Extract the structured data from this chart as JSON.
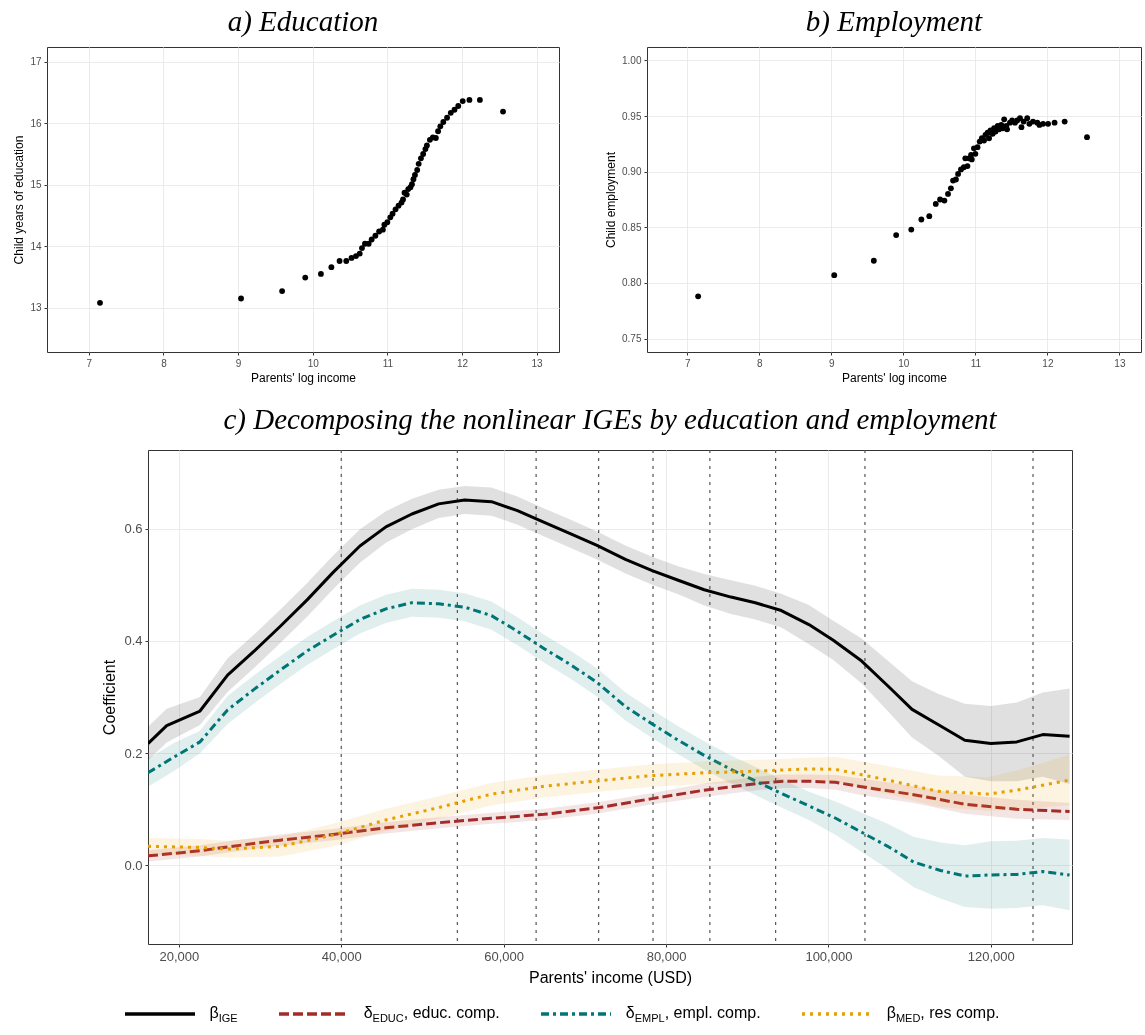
{
  "chart_data": [
    {
      "type": "scatter",
      "title": "a) Education",
      "xlabel": "Parents' log income",
      "ylabel": "Child years of education",
      "color": "#000000",
      "marker": "circle",
      "grid": true,
      "xlim": [
        6.44,
        13.3
      ],
      "ylim": [
        12.28,
        17.24
      ],
      "xticks": [
        7,
        8,
        9,
        10,
        11,
        12,
        13
      ],
      "yticks": [
        13,
        14,
        15,
        16,
        17
      ],
      "x": [
        7.15,
        9.04,
        9.59,
        9.9,
        10.11,
        10.25,
        10.36,
        10.45,
        10.52,
        10.58,
        10.63,
        10.66,
        10.7,
        10.75,
        10.79,
        10.84,
        10.89,
        10.94,
        10.96,
        11.0,
        11.04,
        11.07,
        11.11,
        11.15,
        11.19,
        11.21,
        11.23,
        11.26,
        11.28,
        11.31,
        11.33,
        11.35,
        11.37,
        11.4,
        11.42,
        11.45,
        11.48,
        11.51,
        11.53,
        11.57,
        11.61,
        11.65,
        11.68,
        11.71,
        11.75,
        11.8,
        11.85,
        11.9,
        11.95,
        12.01,
        12.1,
        12.24,
        12.55
      ],
      "values": [
        13.08,
        13.15,
        13.27,
        13.49,
        13.55,
        13.66,
        13.76,
        13.76,
        13.81,
        13.84,
        13.88,
        13.97,
        14.04,
        14.04,
        14.11,
        14.17,
        14.24,
        14.27,
        14.35,
        14.39,
        14.47,
        14.53,
        14.6,
        14.66,
        14.71,
        14.76,
        14.87,
        14.84,
        14.93,
        14.96,
        15.01,
        15.09,
        15.16,
        15.24,
        15.34,
        15.43,
        15.5,
        15.58,
        15.64,
        15.73,
        15.77,
        15.76,
        15.87,
        15.95,
        16.02,
        16.09,
        16.17,
        16.22,
        16.28,
        16.36,
        16.38,
        16.38,
        16.19
      ]
    },
    {
      "type": "scatter",
      "title": "b) Employment",
      "xlabel": "Parents' log income",
      "ylabel": "Child employment",
      "color": "#000000",
      "marker": "circle",
      "grid": true,
      "xlim": [
        6.44,
        13.3
      ],
      "ylim": [
        0.738,
        1.012
      ],
      "xticks": [
        7,
        8,
        9,
        10,
        11,
        12,
        13
      ],
      "yticks": [
        0.75,
        {
          "value": 0.8,
          "label": "0.80"
        },
        0.85,
        {
          "value": 0.9,
          "label": "0.90"
        },
        0.95,
        {
          "value": 1,
          "label": "1.00"
        }
      ],
      "x": [
        7.15,
        9.04,
        9.59,
        9.9,
        10.11,
        10.25,
        10.36,
        10.45,
        10.51,
        10.57,
        10.62,
        10.66,
        10.69,
        10.73,
        10.76,
        10.8,
        10.84,
        10.86,
        10.89,
        10.91,
        10.94,
        10.95,
        10.98,
        11.0,
        11.03,
        11.06,
        11.09,
        11.12,
        11.14,
        11.17,
        11.19,
        11.21,
        11.24,
        11.26,
        11.28,
        11.31,
        11.33,
        11.36,
        11.38,
        11.4,
        11.43,
        11.44,
        11.48,
        11.51,
        11.55,
        11.58,
        11.62,
        11.64,
        11.67,
        11.72,
        11.75,
        11.8,
        11.86,
        11.89,
        11.94,
        12.01,
        12.1,
        12.24,
        12.55
      ],
      "values": [
        0.788,
        0.807,
        0.82,
        0.843,
        0.848,
        0.857,
        0.86,
        0.871,
        0.875,
        0.874,
        0.88,
        0.885,
        0.892,
        0.893,
        0.898,
        0.902,
        0.904,
        0.912,
        0.905,
        0.912,
        0.915,
        0.911,
        0.921,
        0.916,
        0.922,
        0.927,
        0.93,
        0.928,
        0.933,
        0.935,
        0.93,
        0.937,
        0.934,
        0.939,
        0.936,
        0.941,
        0.938,
        0.942,
        0.939,
        0.947,
        0.941,
        0.938,
        0.944,
        0.946,
        0.944,
        0.946,
        0.948,
        0.94,
        0.945,
        0.948,
        0.943,
        0.945,
        0.944,
        0.942,
        0.943,
        0.943,
        0.944,
        0.945,
        0.931
      ]
    },
    {
      "type": "line",
      "title": "c) Decomposing the nonlinear IGEs by education and employment",
      "xlabel": "Parents' income (USD)",
      "ylabel": "Coefficient",
      "grid": true,
      "legend": "bottom",
      "xlim": [
        16200,
        130000
      ],
      "ylim": [
        -0.14,
        0.74
      ],
      "xticks": [
        {
          "value": 20000,
          "label": "20,000"
        },
        {
          "value": 40000,
          "label": "40,000"
        },
        {
          "value": 60000,
          "label": "60,000"
        },
        {
          "value": 80000,
          "label": "80,000"
        },
        {
          "value": 100000,
          "label": "100,000"
        },
        {
          "value": 120000,
          "label": "120,000"
        }
      ],
      "yticks": [
        {
          "value": 0,
          "label": "0.0"
        },
        0.2,
        0.4,
        0.6
      ],
      "ref_lines": [
        {
          "axis": "x",
          "value": 40000,
          "color": "#555555",
          "line_style": "dotted"
        },
        {
          "axis": "x",
          "value": 54300,
          "color": "#555555",
          "line_style": "dotted"
        },
        {
          "axis": "x",
          "value": 64000,
          "color": "#555555",
          "line_style": "dotted"
        },
        {
          "axis": "x",
          "value": 71700,
          "color": "#555555",
          "line_style": "dotted"
        },
        {
          "axis": "x",
          "value": 78400,
          "color": "#555555",
          "line_style": "dotted"
        },
        {
          "axis": "x",
          "value": 85400,
          "color": "#555555",
          "line_style": "dotted"
        },
        {
          "axis": "x",
          "value": 93500,
          "color": "#555555",
          "line_style": "dotted"
        },
        {
          "axis": "x",
          "value": 104500,
          "color": "#555555",
          "line_style": "dotted"
        },
        {
          "axis": "x",
          "value": 125200,
          "color": "#555555",
          "line_style": "dotted"
        }
      ],
      "series": [
        {
          "name": "β$_{IGE}$",
          "color": "#000000",
          "line_style": "solid",
          "x": [
            16200,
            18500,
            22600,
            26000,
            29300,
            32500,
            35800,
            39000,
            42300,
            45500,
            48700,
            52000,
            55200,
            58500,
            61700,
            65000,
            68200,
            71500,
            75000,
            78300,
            81500,
            84700,
            88000,
            91000,
            94200,
            97600,
            100600,
            104100,
            107300,
            110300,
            113500,
            116800,
            120000,
            123200,
            126400,
            129700
          ],
          "values": [
            0.217,
            0.249,
            0.275,
            0.339,
            0.382,
            0.426,
            0.473,
            0.522,
            0.569,
            0.603,
            0.626,
            0.644,
            0.651,
            0.648,
            0.632,
            0.611,
            0.591,
            0.57,
            0.545,
            0.525,
            0.508,
            0.491,
            0.478,
            0.468,
            0.454,
            0.429,
            0.401,
            0.364,
            0.32,
            0.278,
            0.251,
            0.223,
            0.217,
            0.22,
            0.233,
            0.23
          ],
          "lower": [
            0.187,
            0.219,
            0.25,
            0.309,
            0.352,
            0.396,
            0.443,
            0.492,
            0.539,
            0.575,
            0.599,
            0.619,
            0.626,
            0.623,
            0.607,
            0.586,
            0.566,
            0.545,
            0.52,
            0.5,
            0.483,
            0.463,
            0.448,
            0.438,
            0.424,
            0.394,
            0.366,
            0.324,
            0.275,
            0.228,
            0.196,
            0.158,
            0.15,
            0.15,
            0.158,
            0.145
          ],
          "upper": [
            0.247,
            0.279,
            0.3,
            0.369,
            0.412,
            0.456,
            0.503,
            0.552,
            0.599,
            0.631,
            0.653,
            0.669,
            0.676,
            0.673,
            0.657,
            0.636,
            0.616,
            0.595,
            0.57,
            0.55,
            0.533,
            0.519,
            0.508,
            0.498,
            0.484,
            0.464,
            0.436,
            0.404,
            0.365,
            0.328,
            0.306,
            0.288,
            0.284,
            0.29,
            0.308,
            0.315
          ]
        },
        {
          "name": "δ$_{EDUC}$, educ. comp.",
          "color": "#a52a2a",
          "line_style": "dashed",
          "x": [
            16200,
            22600,
            26000,
            32500,
            39000,
            45500,
            52000,
            58500,
            65000,
            71800,
            78300,
            84700,
            91200,
            94400,
            97600,
            100900,
            104100,
            110500,
            116800,
            123200,
            129700
          ],
          "values": [
            0.017,
            0.026,
            0.033,
            0.045,
            0.055,
            0.067,
            0.076,
            0.084,
            0.091,
            0.103,
            0.119,
            0.134,
            0.146,
            0.15,
            0.15,
            0.148,
            0.14,
            0.126,
            0.109,
            0.1,
            0.096
          ],
          "lower": [
            0.007,
            0.016,
            0.023,
            0.035,
            0.045,
            0.057,
            0.066,
            0.074,
            0.081,
            0.093,
            0.109,
            0.122,
            0.134,
            0.138,
            0.138,
            0.135,
            0.125,
            0.111,
            0.092,
            0.083,
            0.081
          ],
          "upper": [
            0.027,
            0.036,
            0.043,
            0.055,
            0.065,
            0.077,
            0.086,
            0.094,
            0.101,
            0.113,
            0.129,
            0.146,
            0.158,
            0.162,
            0.162,
            0.161,
            0.155,
            0.141,
            0.126,
            0.117,
            0.111
          ]
        },
        {
          "name": "δ$_{EMPL}$, empl. comp.",
          "color": "#007575",
          "line_style": "dashdot",
          "x": [
            16200,
            19400,
            22600,
            26000,
            29300,
            32500,
            35800,
            39000,
            42300,
            45500,
            48700,
            52000,
            55200,
            58500,
            61700,
            65000,
            68200,
            71500,
            75000,
            78300,
            81500,
            84700,
            88000,
            91200,
            94400,
            97600,
            100900,
            104100,
            107300,
            110500,
            113800,
            116800,
            120000,
            123200,
            126400,
            129700
          ],
          "values": [
            0.165,
            0.193,
            0.22,
            0.277,
            0.314,
            0.348,
            0.382,
            0.41,
            0.438,
            0.457,
            0.468,
            0.466,
            0.46,
            0.445,
            0.417,
            0.386,
            0.358,
            0.326,
            0.283,
            0.252,
            0.223,
            0.196,
            0.171,
            0.149,
            0.127,
            0.106,
            0.084,
            0.059,
            0.034,
            0.006,
            -0.009,
            -0.019,
            -0.017,
            -0.016,
            -0.011,
            -0.017
          ],
          "lower": [
            0.14,
            0.168,
            0.2,
            0.252,
            0.289,
            0.323,
            0.357,
            0.385,
            0.413,
            0.432,
            0.443,
            0.441,
            0.435,
            0.42,
            0.392,
            0.361,
            0.333,
            0.301,
            0.258,
            0.227,
            0.198,
            0.171,
            0.146,
            0.124,
            0.102,
            0.081,
            0.054,
            0.024,
            -0.006,
            -0.039,
            -0.059,
            -0.074,
            -0.077,
            -0.076,
            -0.071,
            -0.08
          ],
          "upper": [
            0.19,
            0.218,
            0.24,
            0.302,
            0.339,
            0.373,
            0.407,
            0.435,
            0.463,
            0.482,
            0.493,
            0.491,
            0.485,
            0.47,
            0.442,
            0.411,
            0.383,
            0.351,
            0.308,
            0.277,
            0.248,
            0.221,
            0.196,
            0.174,
            0.152,
            0.131,
            0.114,
            0.094,
            0.074,
            0.051,
            0.041,
            0.036,
            0.043,
            0.044,
            0.049,
            0.046
          ]
        },
        {
          "name": "β$_{MED}$, res comp.",
          "color": "#e69f00",
          "line_style": "dotted",
          "x": [
            16200,
            22600,
            26000,
            32500,
            39000,
            45500,
            52000,
            58500,
            65000,
            71800,
            78300,
            84700,
            91200,
            97600,
            100900,
            107300,
            113500,
            119600,
            123200,
            129700
          ],
          "values": [
            0.034,
            0.032,
            0.029,
            0.034,
            0.054,
            0.081,
            0.103,
            0.127,
            0.141,
            0.151,
            0.16,
            0.165,
            0.168,
            0.172,
            0.171,
            0.152,
            0.132,
            0.127,
            0.134,
            0.152
          ],
          "lower": [
            0.019,
            0.017,
            0.014,
            0.016,
            0.034,
            0.061,
            0.083,
            0.107,
            0.121,
            0.131,
            0.14,
            0.145,
            0.148,
            0.152,
            0.149,
            0.127,
            0.104,
            0.097,
            0.099,
            0.107
          ],
          "upper": [
            0.049,
            0.047,
            0.044,
            0.052,
            0.074,
            0.101,
            0.123,
            0.147,
            0.161,
            0.171,
            0.18,
            0.185,
            0.188,
            0.192,
            0.193,
            0.177,
            0.16,
            0.157,
            0.169,
            0.197
          ]
        }
      ]
    }
  ]
}
